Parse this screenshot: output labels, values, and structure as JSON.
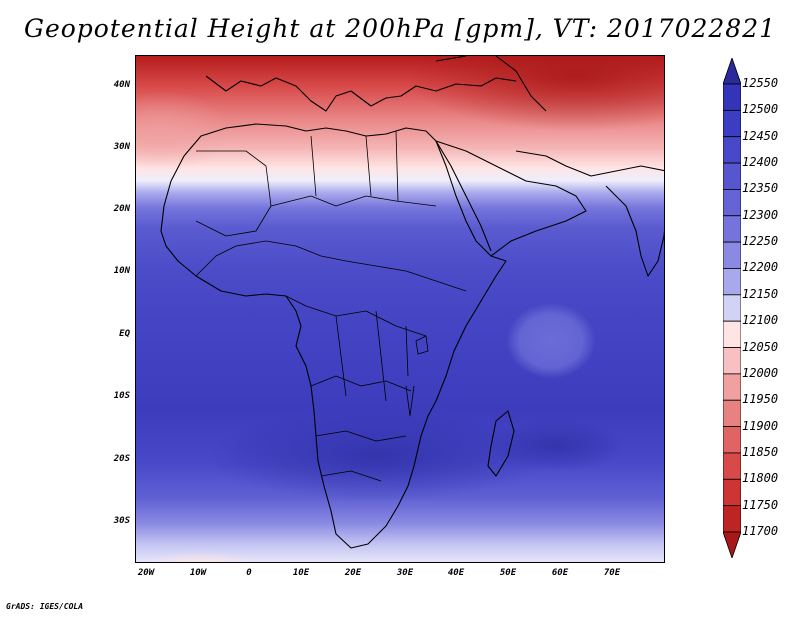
{
  "title": "Geopotential Height at 200hPa [gpm], VT: 2017022821",
  "lat_labels": [
    "40N",
    "30N",
    "20N",
    "10N",
    "EQ",
    "10S",
    "20S",
    "30S"
  ],
  "lon_labels": [
    "20W",
    "10W",
    "0",
    "10E",
    "20E",
    "30E",
    "40E",
    "50E",
    "60E",
    "70E"
  ],
  "colorbar": {
    "levels": [
      "12550",
      "12500",
      "12450",
      "12400",
      "12350",
      "12300",
      "12250",
      "12200",
      "12150",
      "12100",
      "12050",
      "12000",
      "11950",
      "11900",
      "11850",
      "11800",
      "11750",
      "11700"
    ],
    "colors": [
      "#2a2a9c",
      "#3434b8",
      "#3d3dc4",
      "#4848c9",
      "#5656cf",
      "#6464d6",
      "#7474dc",
      "#8a8ae3",
      "#a8a8ec",
      "#d2d2f5",
      "#ffe4e4",
      "#f8c0c0",
      "#f0a0a0",
      "#e88282",
      "#e06464",
      "#d84a4a",
      "#cf3434",
      "#be2424",
      "#a81818"
    ]
  },
  "credit": "GrADS: IGES/COLA"
}
